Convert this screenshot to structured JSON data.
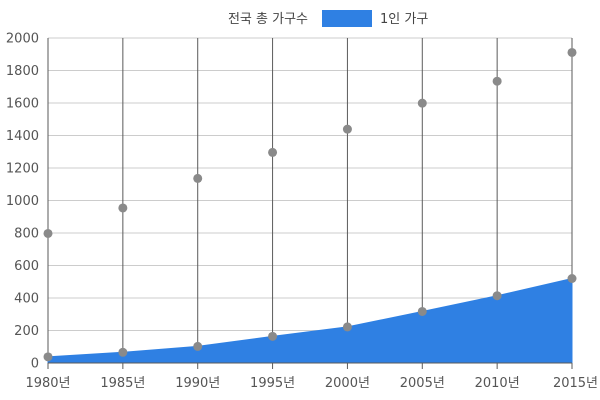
{
  "chart_data": {
    "type": "area",
    "categories": [
      "1980년",
      "1985년",
      "1990년",
      "1995년",
      "2000년",
      "2005년",
      "2010년",
      "2015년"
    ],
    "series": [
      {
        "name": "전국 총 가구수",
        "render": "points",
        "color": "#888888",
        "values": [
          797,
          954,
          1136,
          1296,
          1439,
          1599,
          1734,
          1911
        ]
      },
      {
        "name": "1인 가구",
        "render": "area",
        "color": "#2f80e3",
        "values": [
          38,
          66,
          102,
          164,
          222,
          317,
          414,
          520
        ]
      }
    ],
    "ylim": [
      0,
      2000
    ],
    "yticks": [
      0,
      200,
      400,
      600,
      800,
      1000,
      1200,
      1400,
      1600,
      1800,
      2000
    ],
    "grid": true,
    "legend_position": "top-center"
  }
}
